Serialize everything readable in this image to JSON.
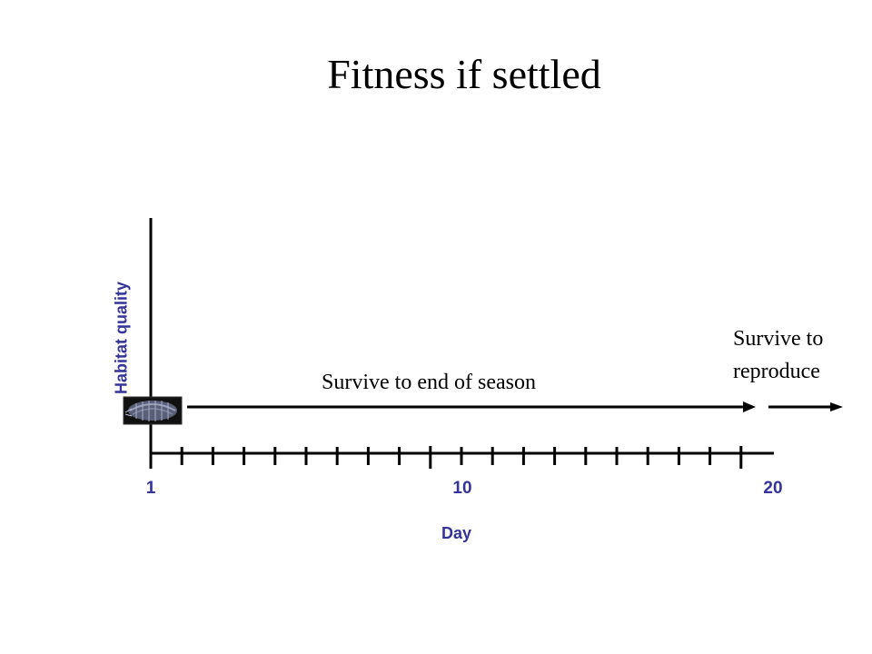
{
  "title": "Fitness if settled",
  "x_axis": {
    "label": "Day",
    "tick_labels": [
      "1",
      "10",
      "20"
    ]
  },
  "y_axis": {
    "label": "Habitat quality"
  },
  "annotations": {
    "survive_season": "Survive to end of season",
    "survive_reproduce_line1": "Survive to",
    "survive_reproduce_line2": "reproduce"
  },
  "colors": {
    "axis_text": "#333399",
    "lines": "#000000"
  },
  "icons": {
    "organism": "isopod-image"
  }
}
